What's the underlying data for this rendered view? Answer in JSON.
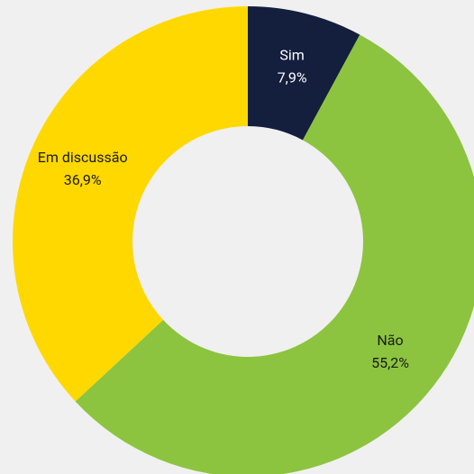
{
  "chart_data": {
    "type": "donut",
    "categories": [
      "Sim",
      "Não",
      "Em discussão"
    ],
    "values": [
      7.9,
      55.2,
      36.9
    ],
    "value_labels": [
      "7,9%",
      "55,2%",
      "36,9%"
    ],
    "colors": [
      "#141e3d",
      "#8cc43f",
      "#ffd800"
    ],
    "label_colors": [
      "#ffffff",
      "#1a1a1a",
      "#1a1a1a"
    ]
  }
}
